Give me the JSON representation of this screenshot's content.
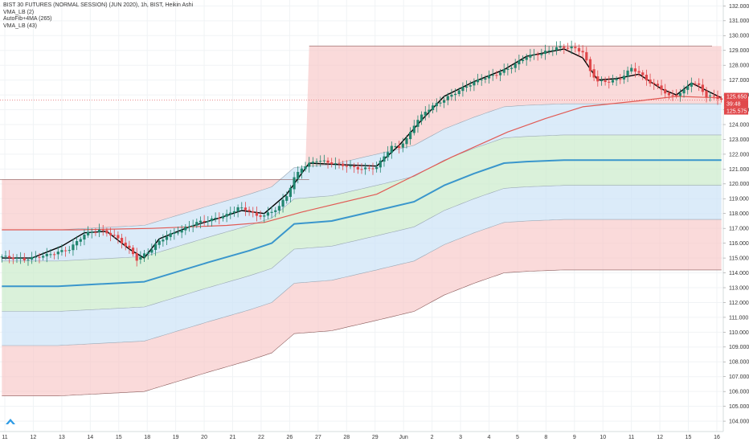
{
  "chart_data": {
    "type": "candlestick",
    "title": "BIST 30 FUTURES (NORMAL SESSION) (JUN 2020), 1h, BIST, Heikin Ashi",
    "indicators": [
      "VMA_LB (2)",
      "AutoFib+4MA (265)",
      "VMA_LB (43)"
    ],
    "x_tick_labels": [
      "11",
      "12",
      "13",
      "14",
      "15",
      "18",
      "19",
      "20",
      "21",
      "22",
      "26",
      "27",
      "28",
      "29",
      "Jun",
      "2",
      "3",
      "4",
      "5",
      "8",
      "9",
      "10",
      "11",
      "12",
      "15",
      "16"
    ],
    "y_tick_labels": [
      "104.000",
      "105.000",
      "106.000",
      "107.000",
      "108.000",
      "109.000",
      "110.000",
      "111.000",
      "112.000",
      "113.000",
      "114.000",
      "115.000",
      "116.000",
      "117.000",
      "118.000",
      "119.000",
      "120.000",
      "121.000",
      "122.000",
      "123.000",
      "124.000",
      "125.000",
      "126.000",
      "127.000",
      "128.000",
      "129.000",
      "130.000",
      "131.000",
      "132.000"
    ],
    "ylim": [
      103.3,
      132.4
    ],
    "price_labels": {
      "last": "125.650",
      "countdown": "39:48",
      "ma": "125.575"
    },
    "close_path": [
      [
        0,
        115.1
      ],
      [
        6,
        114.9
      ],
      [
        12,
        115.2
      ],
      [
        18,
        115.6
      ],
      [
        22,
        116.6
      ],
      [
        26,
        116.9
      ],
      [
        30,
        116.5
      ],
      [
        34,
        115.6
      ],
      [
        36,
        114.9
      ],
      [
        39,
        115.4
      ],
      [
        41,
        115.9
      ],
      [
        44,
        116.5
      ],
      [
        48,
        116.9
      ],
      [
        52,
        117.4
      ],
      [
        56,
        117.6
      ],
      [
        60,
        117.9
      ],
      [
        63,
        118.4
      ],
      [
        66,
        118.2
      ],
      [
        68,
        117.8
      ],
      [
        70,
        117.9
      ],
      [
        72,
        118.1
      ],
      [
        74,
        118.5
      ],
      [
        76,
        119.2
      ],
      [
        78,
        120.4
      ],
      [
        80,
        121.1
      ],
      [
        84,
        121.6
      ],
      [
        88,
        121.4
      ],
      [
        92,
        121.2
      ],
      [
        96,
        121.0
      ],
      [
        100,
        121.1
      ],
      [
        102,
        121.9
      ],
      [
        104,
        122.5
      ],
      [
        106,
        122.5
      ],
      [
        108,
        123.0
      ],
      [
        110,
        124.0
      ],
      [
        113,
        124.9
      ],
      [
        116,
        125.4
      ],
      [
        120,
        126.0
      ],
      [
        124,
        126.6
      ],
      [
        128,
        127.1
      ],
      [
        132,
        127.4
      ],
      [
        136,
        127.9
      ],
      [
        140,
        128.6
      ],
      [
        144,
        128.8
      ],
      [
        148,
        129.2
      ],
      [
        152,
        129.2
      ],
      [
        155,
        128.9
      ],
      [
        157,
        127.6
      ],
      [
        159,
        126.9
      ],
      [
        162,
        126.9
      ],
      [
        165,
        127.1
      ],
      [
        168,
        127.8
      ],
      [
        170,
        127.5
      ],
      [
        172,
        127.0
      ],
      [
        174,
        126.7
      ],
      [
        176,
        126.4
      ],
      [
        178,
        125.9
      ],
      [
        180,
        126.0
      ],
      [
        182,
        126.3
      ],
      [
        184,
        126.9
      ],
      [
        186,
        126.6
      ],
      [
        188,
        125.9
      ],
      [
        190,
        125.9
      ],
      [
        192,
        125.7
      ]
    ],
    "fib_upper_level": 129.3,
    "series": [
      {
        "name": "VMA_LB (2)",
        "color": "#000000",
        "values": [
          [
            0,
            115.0
          ],
          [
            8,
            115.0
          ],
          [
            16,
            115.8
          ],
          [
            22,
            116.7
          ],
          [
            28,
            116.8
          ],
          [
            34,
            115.6
          ],
          [
            38,
            115.0
          ],
          [
            42,
            116.3
          ],
          [
            50,
            117.1
          ],
          [
            58,
            117.7
          ],
          [
            64,
            118.2
          ],
          [
            70,
            118.0
          ],
          [
            76,
            119.3
          ],
          [
            82,
            121.4
          ],
          [
            90,
            121.3
          ],
          [
            100,
            121.2
          ],
          [
            106,
            122.6
          ],
          [
            112,
            124.3
          ],
          [
            118,
            125.9
          ],
          [
            126,
            126.9
          ],
          [
            134,
            127.7
          ],
          [
            140,
            128.6
          ],
          [
            150,
            129.1
          ],
          [
            155,
            128.5
          ],
          [
            159,
            127.0
          ],
          [
            164,
            127.1
          ],
          [
            170,
            127.4
          ],
          [
            176,
            126.4
          ],
          [
            180,
            126.0
          ],
          [
            184,
            126.8
          ],
          [
            192,
            125.8
          ]
        ]
      },
      {
        "name": "AutoFib+4MA (265)",
        "color": "#e15a54",
        "values": [
          [
            0,
            116.9
          ],
          [
            20,
            116.9
          ],
          [
            40,
            117.0
          ],
          [
            60,
            117.2
          ],
          [
            70,
            117.4
          ],
          [
            80,
            118.1
          ],
          [
            100,
            119.3
          ],
          [
            120,
            121.8
          ],
          [
            135,
            123.5
          ],
          [
            145,
            124.4
          ],
          [
            155,
            125.2
          ],
          [
            170,
            125.6
          ],
          [
            180,
            125.9
          ],
          [
            192,
            125.8
          ]
        ]
      },
      {
        "name": "VMA_LB (43)",
        "color": "#3a96cc",
        "values": [
          [
            0,
            113.1
          ],
          [
            15,
            113.1
          ],
          [
            38,
            113.4
          ],
          [
            55,
            114.7
          ],
          [
            66,
            115.5
          ],
          [
            72,
            116.0
          ],
          [
            78,
            117.3
          ],
          [
            88,
            117.5
          ],
          [
            100,
            118.2
          ],
          [
            110,
            118.8
          ],
          [
            118,
            119.9
          ],
          [
            126,
            120.7
          ],
          [
            134,
            121.4
          ],
          [
            140,
            121.5
          ],
          [
            150,
            121.6
          ],
          [
            192,
            121.6
          ]
        ]
      }
    ],
    "bands": [
      {
        "name": "fib-upper-red",
        "color": "#f7c6c6"
      },
      {
        "name": "fib-mid-blue",
        "color": "#cfe4f7"
      },
      {
        "name": "fib-center-green",
        "color": "#cdeccd"
      },
      {
        "name": "fib-lower-blue",
        "color": "#cfe4f7"
      },
      {
        "name": "fib-lower-red",
        "color": "#f7c6c6"
      }
    ],
    "grid": true,
    "colors": {
      "up": "#22866f",
      "down": "#e0484b",
      "price_label": "#e0484b"
    }
  }
}
